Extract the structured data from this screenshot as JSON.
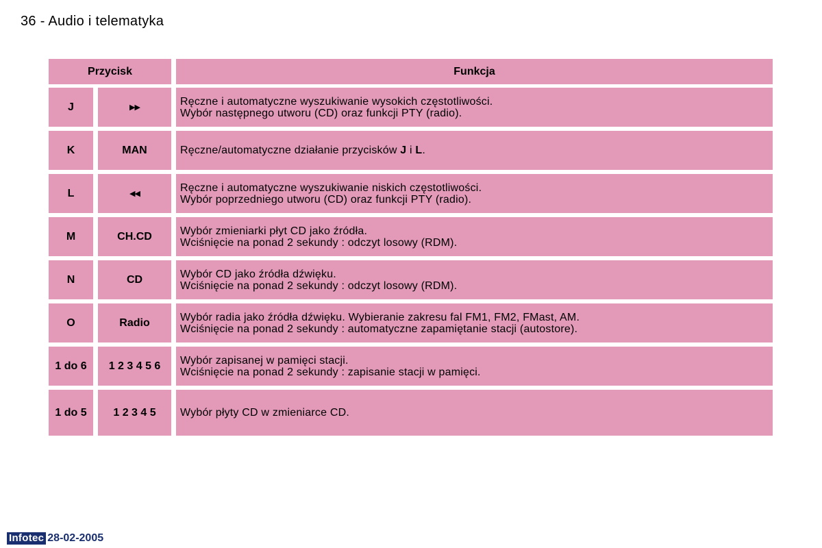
{
  "page": {
    "header": "36 - Audio i telematyka"
  },
  "table": {
    "headers": {
      "button": "Przycisk",
      "function": "Funkcja"
    },
    "rows": [
      {
        "key": "J",
        "button": "",
        "icon": "fast-forward-icon",
        "lines": [
          "Ręczne i automatyczne wyszukiwanie wysokich częstotliwości.",
          "Wybór następnego utworu (CD) oraz funkcji PTY (radio)."
        ]
      },
      {
        "key": "K",
        "button": "MAN",
        "func_pre": "Ręczne/automatyczne działanie przycisków ",
        "func_b1": "J",
        "func_mid": " i ",
        "func_b2": "L",
        "func_post": "."
      },
      {
        "key": "L",
        "button": "",
        "icon": "rewind-icon",
        "lines": [
          "Ręczne i automatyczne wyszukiwanie niskich częstotliwości.",
          "Wybór poprzedniego utworu (CD) oraz funkcji PTY (radio)."
        ]
      },
      {
        "key": "M",
        "button": "CH.CD",
        "lines": [
          "Wybór zmieniarki płyt CD jako źródła.",
          "Wciśnięcie na ponad 2 sekundy : odczyt losowy (RDM)."
        ]
      },
      {
        "key": "N",
        "button": "CD",
        "lines": [
          "Wybór CD jako źródła dźwięku.",
          "Wciśnięcie na ponad 2 sekundy : odczyt losowy (RDM)."
        ]
      },
      {
        "key": "O",
        "button": "Radio",
        "lines": [
          "Wybór radia jako źródła dźwięku. Wybieranie zakresu fal FM1, FM2, FMast, AM.",
          "Wciśnięcie na ponad 2 sekundy : automatyczne zapamiętanie stacji (autostore)."
        ]
      },
      {
        "key": "1 do 6",
        "button": "1 2 3 4 5 6",
        "lines": [
          "Wybór zapisanej w pamięci stacji.",
          "Wciśnięcie na ponad 2 sekundy : zapisanie stacji w pamięci."
        ]
      },
      {
        "key": "1 do 5",
        "button": "1 2 3 4 5",
        "lines": [
          "Wybór płyty CD w zmieniarce CD."
        ]
      }
    ]
  },
  "footer": {
    "logo": "Infotec",
    "date": "28-02-2005"
  },
  "colors": {
    "cell": "#e29ab8",
    "footer": "#1a2f6f"
  }
}
